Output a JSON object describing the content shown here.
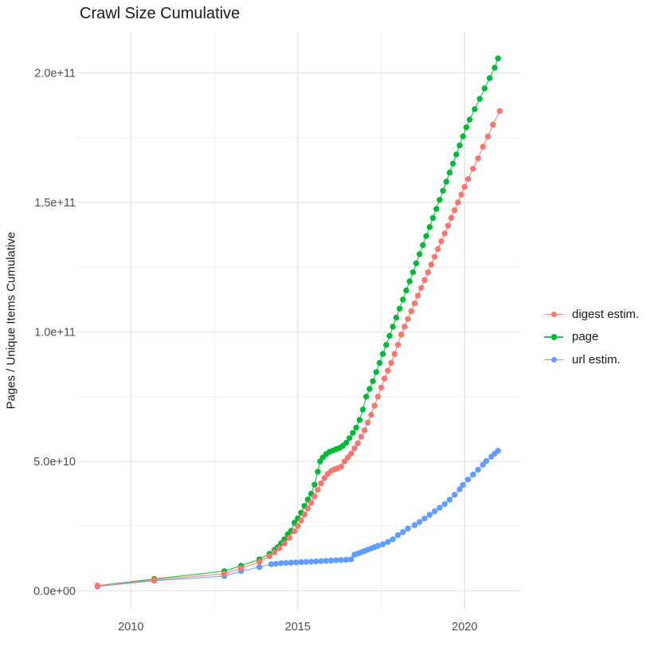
{
  "chart_data": {
    "type": "scatter",
    "title": "Crawl Size Cumulative",
    "xlabel": "",
    "ylabel": "Pages / Unique Items Cumulative",
    "xlim": [
      2008.4,
      2021.7
    ],
    "ylim": [
      0,
      216000000000.0
    ],
    "grid": true,
    "legend_position": "right",
    "x_ticks": [
      {
        "v": 2010,
        "label": "2010"
      },
      {
        "v": 2015,
        "label": "2015"
      },
      {
        "v": 2020,
        "label": "2020"
      }
    ],
    "x_minor_ticks": [
      2012.5,
      2017.5
    ],
    "y_ticks": [
      {
        "v": 0,
        "label": "0.0e+00"
      },
      {
        "v": 50000000000.0,
        "label": "5.0e+10"
      },
      {
        "v": 100000000000.0,
        "label": "1.0e+11"
      },
      {
        "v": 150000000000.0,
        "label": "1.5e+11"
      },
      {
        "v": 200000000000.0,
        "label": "2.0e+11"
      }
    ],
    "y_minor_ticks": [
      25000000000.0,
      75000000000.0,
      125000000000.0,
      175000000000.0
    ],
    "series": [
      {
        "name": "digest estim.",
        "color": "#F8766D",
        "points": [
          [
            2009.0,
            1900000000.0
          ],
          [
            2010.7,
            4200000000.0
          ],
          [
            2012.8,
            6600000000.0
          ],
          [
            2013.3,
            8700000000.0
          ],
          [
            2013.85,
            11200000000.0
          ],
          [
            2014.15,
            13400000000.0
          ],
          [
            2014.3,
            14900000000.0
          ],
          [
            2014.45,
            16500000000.0
          ],
          [
            2014.6,
            18300000000.0
          ],
          [
            2014.75,
            20500000000.0
          ],
          [
            2014.9,
            23000000000.0
          ],
          [
            2015.0,
            25000000000.0
          ],
          [
            2015.1,
            27200000000.0
          ],
          [
            2015.2,
            29500000000.0
          ],
          [
            2015.3,
            31800000000.0
          ],
          [
            2015.4,
            34000000000.0
          ],
          [
            2015.5,
            36500000000.0
          ],
          [
            2015.6,
            39000000000.0
          ],
          [
            2015.7,
            41500000000.0
          ],
          [
            2015.8,
            43500000000.0
          ],
          [
            2015.9,
            45200000000.0
          ],
          [
            2016.0,
            46300000000.0
          ],
          [
            2016.1,
            47000000000.0
          ],
          [
            2016.2,
            47400000000.0
          ],
          [
            2016.3,
            48000000000.0
          ],
          [
            2016.4,
            50000000000.0
          ],
          [
            2016.5,
            51500000000.0
          ],
          [
            2016.6,
            53000000000.0
          ],
          [
            2016.7,
            55000000000.0
          ],
          [
            2016.8,
            57000000000.0
          ],
          [
            2016.9,
            59500000000.0
          ],
          [
            2017.0,
            62000000000.0
          ],
          [
            2017.1,
            65000000000.0
          ],
          [
            2017.2,
            68000000000.0
          ],
          [
            2017.3,
            71500000000.0
          ],
          [
            2017.4,
            75000000000.0
          ],
          [
            2017.5,
            78500000000.0
          ],
          [
            2017.6,
            82000000000.0
          ],
          [
            2017.7,
            85000000000.0
          ],
          [
            2017.8,
            88000000000.0
          ],
          [
            2017.9,
            91500000000.0
          ],
          [
            2018.0,
            95000000000.0
          ],
          [
            2018.1,
            99000000000.0
          ],
          [
            2018.2,
            102000000000.0
          ],
          [
            2018.3,
            105000000000.0
          ],
          [
            2018.4,
            108000000000.0
          ],
          [
            2018.5,
            111000000000.0
          ],
          [
            2018.6,
            114000000000.0
          ],
          [
            2018.7,
            117000000000.0
          ],
          [
            2018.8,
            120000000000.0
          ],
          [
            2018.9,
            123000000000.0
          ],
          [
            2019.0,
            126000000000.0
          ],
          [
            2019.1,
            129000000000.0
          ],
          [
            2019.2,
            132000000000.0
          ],
          [
            2019.3,
            135000000000.0
          ],
          [
            2019.4,
            138000000000.0
          ],
          [
            2019.5,
            141000000000.0
          ],
          [
            2019.6,
            144000000000.0
          ],
          [
            2019.7,
            147000000000.0
          ],
          [
            2019.8,
            150000000000.0
          ],
          [
            2019.9,
            153000000000.0
          ],
          [
            2020.0,
            156000000000.0
          ],
          [
            2020.1,
            159000000000.0
          ],
          [
            2020.25,
            163000000000.0
          ],
          [
            2020.4,
            167000000000.0
          ],
          [
            2020.55,
            171500000000.0
          ],
          [
            2020.7,
            175500000000.0
          ],
          [
            2020.85,
            180000000000.0
          ],
          [
            2021.05,
            185300000000.0
          ]
        ]
      },
      {
        "name": "page",
        "color": "#00BA38",
        "points": [
          [
            2009.0,
            2000000000.0
          ],
          [
            2010.7,
            4600000000.0
          ],
          [
            2012.8,
            7600000000.0
          ],
          [
            2013.3,
            9700000000.0
          ],
          [
            2013.85,
            12200000000.0
          ],
          [
            2014.15,
            14300000000.0
          ],
          [
            2014.3,
            15800000000.0
          ],
          [
            2014.4,
            16900000000.0
          ],
          [
            2014.5,
            18400000000.0
          ],
          [
            2014.6,
            19900000000.0
          ],
          [
            2014.7,
            21800000000.0
          ],
          [
            2014.8,
            23200000000.0
          ],
          [
            2014.9,
            26300000000.0
          ],
          [
            2015.0,
            28000000000.0
          ],
          [
            2015.1,
            30200000000.0
          ],
          [
            2015.2,
            32800000000.0
          ],
          [
            2015.3,
            35300000000.0
          ],
          [
            2015.4,
            37500000000.0
          ],
          [
            2015.5,
            41000000000.0
          ],
          [
            2015.6,
            46000000000.0
          ],
          [
            2015.67,
            50000000000.0
          ],
          [
            2015.75,
            51500000000.0
          ],
          [
            2015.85,
            52800000000.0
          ],
          [
            2015.95,
            53700000000.0
          ],
          [
            2016.05,
            54200000000.0
          ],
          [
            2016.15,
            54700000000.0
          ],
          [
            2016.25,
            55200000000.0
          ],
          [
            2016.35,
            56000000000.0
          ],
          [
            2016.45,
            57200000000.0
          ],
          [
            2016.55,
            59000000000.0
          ],
          [
            2016.65,
            61000000000.0
          ],
          [
            2016.75,
            63000000000.0
          ],
          [
            2016.85,
            66000000000.0
          ],
          [
            2016.95,
            70000000000.0
          ],
          [
            2017.05,
            75000000000.0
          ],
          [
            2017.15,
            78000000000.0
          ],
          [
            2017.25,
            81000000000.0
          ],
          [
            2017.35,
            84500000000.0
          ],
          [
            2017.45,
            88000000000.0
          ],
          [
            2017.55,
            91500000000.0
          ],
          [
            2017.65,
            95000000000.0
          ],
          [
            2017.75,
            98500000000.0
          ],
          [
            2017.85,
            102000000000.0
          ],
          [
            2017.95,
            105500000000.0
          ],
          [
            2018.05,
            109000000000.0
          ],
          [
            2018.15,
            112500000000.0
          ],
          [
            2018.25,
            116000000000.0
          ],
          [
            2018.35,
            119500000000.0
          ],
          [
            2018.45,
            123000000000.0
          ],
          [
            2018.55,
            126500000000.0
          ],
          [
            2018.65,
            130000000000.0
          ],
          [
            2018.75,
            133500000000.0
          ],
          [
            2018.85,
            137000000000.0
          ],
          [
            2018.95,
            140500000000.0
          ],
          [
            2019.05,
            144000000000.0
          ],
          [
            2019.15,
            147500000000.0
          ],
          [
            2019.25,
            151000000000.0
          ],
          [
            2019.35,
            154500000000.0
          ],
          [
            2019.45,
            158000000000.0
          ],
          [
            2019.55,
            161500000000.0
          ],
          [
            2019.65,
            165000000000.0
          ],
          [
            2019.75,
            168500000000.0
          ],
          [
            2019.85,
            172000000000.0
          ],
          [
            2019.95,
            175500000000.0
          ],
          [
            2020.05,
            179000000000.0
          ],
          [
            2020.15,
            182000000000.0
          ],
          [
            2020.3,
            186000000000.0
          ],
          [
            2020.45,
            190000000000.0
          ],
          [
            2020.6,
            194000000000.0
          ],
          [
            2020.75,
            198000000000.0
          ],
          [
            2020.9,
            202000000000.0
          ],
          [
            2021.0,
            205600000000.0
          ]
        ]
      },
      {
        "name": "url estim.",
        "color": "#619CFF",
        "points": [
          [
            2009.0,
            1700000000.0
          ],
          [
            2010.7,
            3900000000.0
          ],
          [
            2012.8,
            5700000000.0
          ],
          [
            2013.3,
            7600000000.0
          ],
          [
            2013.85,
            9200000000.0
          ],
          [
            2014.2,
            10300000000.0
          ],
          [
            2014.35,
            10500000000.0
          ],
          [
            2014.5,
            10700000000.0
          ],
          [
            2014.65,
            10800000000.0
          ],
          [
            2014.8,
            10900000000.0
          ],
          [
            2014.95,
            11000000000.0
          ],
          [
            2015.1,
            11100000000.0
          ],
          [
            2015.25,
            11200000000.0
          ],
          [
            2015.4,
            11300000000.0
          ],
          [
            2015.55,
            11400000000.0
          ],
          [
            2015.7,
            11500000000.0
          ],
          [
            2015.85,
            11600000000.0
          ],
          [
            2016.0,
            11700000000.0
          ],
          [
            2016.15,
            11800000000.0
          ],
          [
            2016.3,
            11900000000.0
          ],
          [
            2016.45,
            12000000000.0
          ],
          [
            2016.6,
            12200000000.0
          ],
          [
            2016.7,
            14000000000.0
          ],
          [
            2016.8,
            14400000000.0
          ],
          [
            2016.9,
            14900000000.0
          ],
          [
            2017.0,
            15400000000.0
          ],
          [
            2017.1,
            15900000000.0
          ],
          [
            2017.2,
            16400000000.0
          ],
          [
            2017.3,
            16900000000.0
          ],
          [
            2017.4,
            17400000000.0
          ],
          [
            2017.55,
            18000000000.0
          ],
          [
            2017.7,
            18900000000.0
          ],
          [
            2017.85,
            19900000000.0
          ],
          [
            2018.0,
            21500000000.0
          ],
          [
            2018.15,
            22700000000.0
          ],
          [
            2018.3,
            24100000000.0
          ],
          [
            2018.5,
            25400000000.0
          ],
          [
            2018.65,
            26600000000.0
          ],
          [
            2018.8,
            27900000000.0
          ],
          [
            2018.95,
            29400000000.0
          ],
          [
            2019.1,
            30700000000.0
          ],
          [
            2019.25,
            32100000000.0
          ],
          [
            2019.4,
            33500000000.0
          ],
          [
            2019.55,
            35200000000.0
          ],
          [
            2019.7,
            37100000000.0
          ],
          [
            2019.85,
            39200000000.0
          ],
          [
            2019.95,
            40900000000.0
          ],
          [
            2020.1,
            43000000000.0
          ],
          [
            2020.25,
            44900000000.0
          ],
          [
            2020.4,
            46800000000.0
          ],
          [
            2020.55,
            48700000000.0
          ],
          [
            2020.65,
            50200000000.0
          ],
          [
            2020.8,
            51800000000.0
          ],
          [
            2020.9,
            53000000000.0
          ],
          [
            2021.0,
            54100000000.0
          ]
        ]
      }
    ],
    "grid_colors": {
      "major": "#e3e3e3",
      "minor": "#efefef"
    },
    "tick_label_color": "#4d4d4d"
  }
}
